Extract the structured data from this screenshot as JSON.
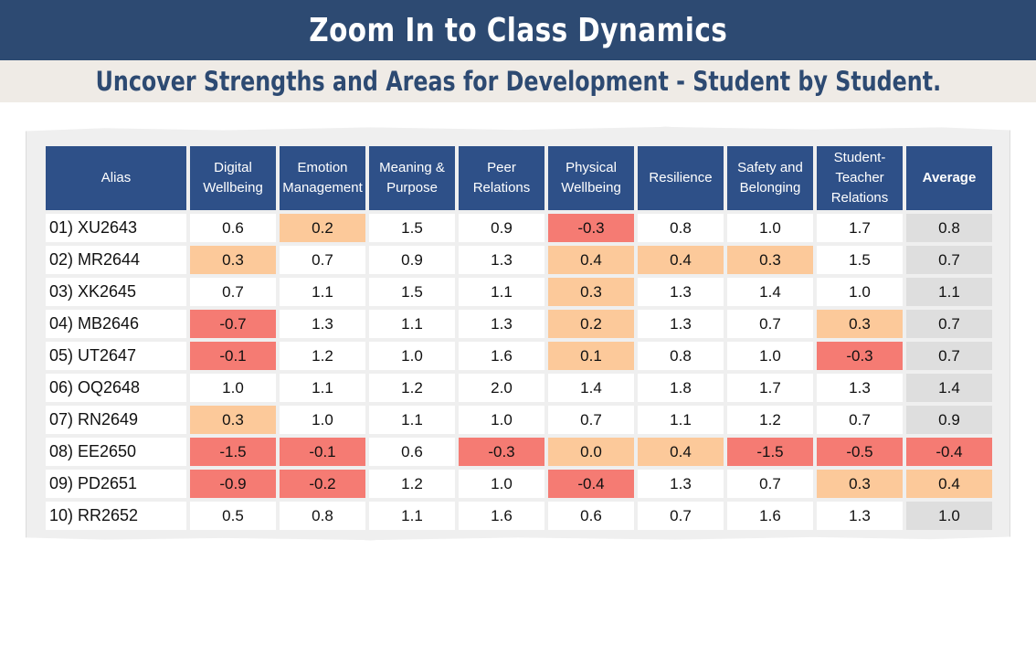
{
  "header": {
    "title": "Zoom In to Class Dynamics",
    "subtitle": "Uncover Strengths and Areas for Development - Student by Student."
  },
  "table": {
    "columns": [
      "Alias",
      "Digital Wellbeing",
      "Emotion Management",
      "Meaning & Purpose",
      "Peer Relations",
      "Physical Wellbeing",
      "Resilience",
      "Safety and Belonging",
      "Student-Teacher Relations",
      "Average"
    ],
    "rows": [
      {
        "alias": "01) XU2643",
        "values": [
          "0.6",
          "0.2",
          "1.5",
          "0.9",
          "-0.3",
          "0.8",
          "1.0",
          "1.7",
          "0.8"
        ],
        "status": [
          "none",
          "orange",
          "none",
          "none",
          "red",
          "none",
          "none",
          "none",
          "avg"
        ]
      },
      {
        "alias": "02) MR2644",
        "values": [
          "0.3",
          "0.7",
          "0.9",
          "1.3",
          "0.4",
          "0.4",
          "0.3",
          "1.5",
          "0.7"
        ],
        "status": [
          "orange",
          "none",
          "none",
          "none",
          "orange",
          "orange",
          "orange",
          "none",
          "avg"
        ]
      },
      {
        "alias": "03) XK2645",
        "values": [
          "0.7",
          "1.1",
          "1.5",
          "1.1",
          "0.3",
          "1.3",
          "1.4",
          "1.0",
          "1.1"
        ],
        "status": [
          "none",
          "none",
          "none",
          "none",
          "orange",
          "none",
          "none",
          "none",
          "avg"
        ]
      },
      {
        "alias": "04) MB2646",
        "values": [
          "-0.7",
          "1.3",
          "1.1",
          "1.3",
          "0.2",
          "1.3",
          "0.7",
          "0.3",
          "0.7"
        ],
        "status": [
          "red",
          "none",
          "none",
          "none",
          "orange",
          "none",
          "none",
          "orange",
          "avg"
        ]
      },
      {
        "alias": "05) UT2647",
        "values": [
          "-0.1",
          "1.2",
          "1.0",
          "1.6",
          "0.1",
          "0.8",
          "1.0",
          "-0.3",
          "0.7"
        ],
        "status": [
          "red",
          "none",
          "none",
          "none",
          "orange",
          "none",
          "none",
          "red",
          "avg"
        ]
      },
      {
        "alias": "06) OQ2648",
        "values": [
          "1.0",
          "1.1",
          "1.2",
          "2.0",
          "1.4",
          "1.8",
          "1.7",
          "1.3",
          "1.4"
        ],
        "status": [
          "none",
          "none",
          "none",
          "none",
          "none",
          "none",
          "none",
          "none",
          "avg"
        ]
      },
      {
        "alias": "07) RN2649",
        "values": [
          "0.3",
          "1.0",
          "1.1",
          "1.0",
          "0.7",
          "1.1",
          "1.2",
          "0.7",
          "0.9"
        ],
        "status": [
          "orange",
          "none",
          "none",
          "none",
          "none",
          "none",
          "none",
          "none",
          "avg"
        ]
      },
      {
        "alias": "08) EE2650",
        "values": [
          "-1.5",
          "-0.1",
          "0.6",
          "-0.3",
          "0.0",
          "0.4",
          "-1.5",
          "-0.5",
          "-0.4"
        ],
        "status": [
          "red",
          "red",
          "none",
          "red",
          "orange",
          "orange",
          "red",
          "red",
          "red"
        ]
      },
      {
        "alias": "09) PD2651",
        "values": [
          "-0.9",
          "-0.2",
          "1.2",
          "1.0",
          "-0.4",
          "1.3",
          "0.7",
          "0.3",
          "0.4"
        ],
        "status": [
          "red",
          "red",
          "none",
          "none",
          "red",
          "none",
          "none",
          "orange",
          "orange"
        ]
      },
      {
        "alias": "10) RR2652",
        "values": [
          "0.5",
          "0.8",
          "1.1",
          "1.6",
          "0.6",
          "0.7",
          "1.6",
          "1.3",
          "1.0"
        ],
        "status": [
          "none",
          "none",
          "none",
          "none",
          "none",
          "none",
          "none",
          "none",
          "avg"
        ]
      }
    ]
  },
  "colors": {
    "banner": "#2d4a72",
    "header_cell": "#2e5088",
    "orange": "#fcc99a",
    "red": "#f57b73",
    "average_cell": "#dedede"
  }
}
